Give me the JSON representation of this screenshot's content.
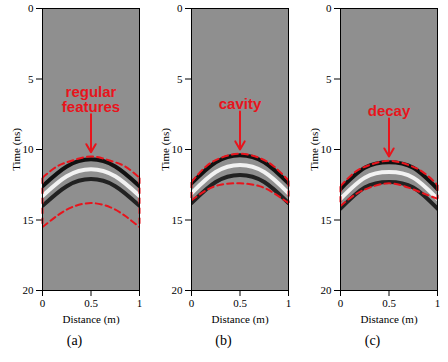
{
  "chart_data": [
    {
      "type": "line",
      "caption": "(a)",
      "annotation": "regular features",
      "xlabel": "Distance (m)",
      "ylabel": "Time (ns)",
      "xlim": [
        0,
        1
      ],
      "xticks": [
        0,
        0.5,
        1
      ],
      "ylim": [
        0,
        20
      ],
      "yticks": [
        0,
        5,
        10,
        15,
        20
      ],
      "outline": {
        "x": [
          0,
          0.15,
          0.3,
          0.5,
          0.7,
          0.85,
          1
        ],
        "upper": [
          12,
          11.2,
          10.8,
          10.5,
          10.8,
          11.2,
          12
        ],
        "lower": [
          15.5,
          14.7,
          14.1,
          13.8,
          14.1,
          14.7,
          15.5
        ],
        "color": "#e8141c",
        "line_style": "dashed"
      },
      "x": [
        0,
        0.25,
        0.5,
        0.75,
        1
      ],
      "series": [
        {
          "color": "#111111",
          "values": [
            12.6,
            11.2,
            10.7,
            11.2,
            12.6
          ]
        },
        {
          "color": "#f2f2f2",
          "values": [
            13.3,
            11.9,
            11.4,
            11.9,
            13.3
          ]
        },
        {
          "color": "#222222",
          "values": [
            14,
            12.6,
            12.1,
            12.6,
            14
          ]
        }
      ]
    },
    {
      "type": "line",
      "caption": "(b)",
      "annotation": "cavity",
      "xlabel": "Distance (m)",
      "ylabel": "Time (ns)",
      "xlim": [
        0,
        1
      ],
      "xticks": [
        0,
        0.5,
        1
      ],
      "ylim": [
        0,
        20
      ],
      "yticks": [
        0,
        5,
        10,
        15,
        20
      ],
      "outline": {
        "x": [
          0,
          0.15,
          0.3,
          0.5,
          0.7,
          0.85,
          1
        ],
        "upper": [
          12.3,
          11.2,
          10.6,
          10.3,
          10.6,
          11.2,
          12.2
        ],
        "lower": [
          13.6,
          12.9,
          12.5,
          12.4,
          12.6,
          13.1,
          13.8
        ],
        "color": "#e8141c",
        "line_style": "dashed"
      },
      "x": [
        0,
        0.25,
        0.5,
        0.75,
        1
      ],
      "series": [
        {
          "color": "#111111",
          "values": [
            12.4,
            10.9,
            10.4,
            10.9,
            12.4
          ]
        },
        {
          "color": "#f2f2f2",
          "values": [
            13.1,
            11.6,
            11.1,
            11.6,
            13.1
          ]
        },
        {
          "color": "#222222",
          "values": [
            13.8,
            12.3,
            11.8,
            12.3,
            13.8
          ]
        }
      ]
    },
    {
      "type": "line",
      "caption": "(c)",
      "annotation": "decay",
      "xlabel": "Distance (m)",
      "ylabel": "Time (ns)",
      "xlim": [
        0,
        1
      ],
      "xticks": [
        0,
        0.5,
        1
      ],
      "ylim": [
        0,
        20
      ],
      "yticks": [
        0,
        5,
        10,
        15,
        20
      ],
      "outline": {
        "x": [
          0,
          0.15,
          0.3,
          0.5,
          0.7,
          0.85,
          1
        ],
        "upper": [
          12.6,
          11.6,
          11.1,
          10.8,
          11.1,
          11.6,
          12.5
        ],
        "lower": [
          14,
          13.2,
          12.7,
          12.4,
          12.7,
          13.1,
          13.5
        ],
        "color": "#e8141c",
        "line_style": "dashed"
      },
      "x": [
        0,
        0.25,
        0.5,
        0.75,
        1
      ],
      "series": [
        {
          "color": "#111111",
          "values": [
            12.8,
            11.3,
            10.9,
            11.3,
            12.8
          ]
        },
        {
          "color": "#f2f2f2",
          "values": [
            13.5,
            12,
            11.6,
            12,
            13.5
          ]
        },
        {
          "color": "#222222",
          "values": [
            14.2,
            12.7,
            12.3,
            12.7,
            14.2
          ]
        }
      ]
    }
  ]
}
